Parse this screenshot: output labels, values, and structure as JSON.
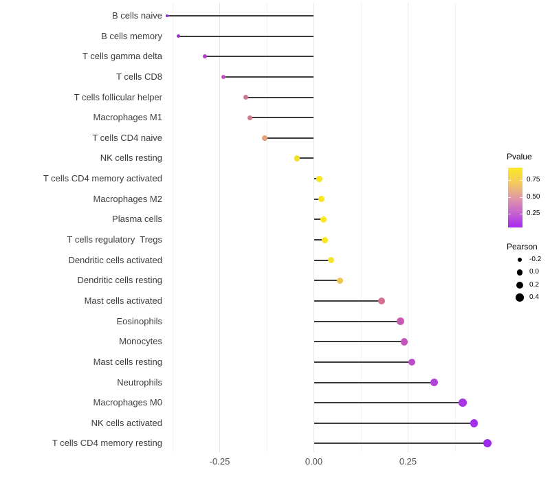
{
  "chart_data": {
    "type": "lollipop",
    "orientation": "horizontal",
    "title": "",
    "xlabel": "",
    "ylabel": "",
    "xlim": [
      -0.43,
      0.5
    ],
    "grid": "vertical major+minor, light gray on white",
    "x_tick_labels": [
      "-0.25",
      "0.00",
      "0.25"
    ],
    "x_ticks": [
      -0.25,
      0.0,
      0.25
    ],
    "x_minor_ticks": [
      -0.375,
      -0.125,
      0.125,
      0.375
    ],
    "size_encoding": "Pearson correlation (larger = higher value)",
    "color_encoding": "Pvalue (purple = low, yellow = high)",
    "rows": [
      {
        "label": "B cells naive",
        "pearson": -0.39,
        "color": "#8F2BD1"
      },
      {
        "label": "B cells memory",
        "pearson": -0.36,
        "color": "#9C35CC"
      },
      {
        "label": "T cells gamma delta",
        "pearson": -0.29,
        "color": "#B13FCC"
      },
      {
        "label": "T cells CD8",
        "pearson": -0.24,
        "color": "#BC54BC"
      },
      {
        "label": "T cells follicular helper",
        "pearson": -0.18,
        "color": "#CE7396"
      },
      {
        "label": "Macrophages M1",
        "pearson": -0.17,
        "color": "#D17A8C"
      },
      {
        "label": "T cells CD4 naive",
        "pearson": -0.13,
        "color": "#E6A178"
      },
      {
        "label": "NK cells resting",
        "pearson": -0.045,
        "color": "#F2DF2E"
      },
      {
        "label": "T cells CD4 memory activated",
        "pearson": 0.015,
        "color": "#F7E620"
      },
      {
        "label": "Macrophages M2",
        "pearson": 0.02,
        "color": "#F7E620"
      },
      {
        "label": "Plasma cells",
        "pearson": 0.025,
        "color": "#F7E620"
      },
      {
        "label": "T cells regulatory  Tregs",
        "pearson": 0.03,
        "color": "#F7E620"
      },
      {
        "label": "Dendritic cells activated",
        "pearson": 0.045,
        "color": "#F5E32B"
      },
      {
        "label": "Dendritic cells resting",
        "pearson": 0.07,
        "color": "#EFC44F"
      },
      {
        "label": "Mast cells activated",
        "pearson": 0.18,
        "color": "#D4718F"
      },
      {
        "label": "Eosinophils",
        "pearson": 0.23,
        "color": "#C75BB1"
      },
      {
        "label": "Monocytes",
        "pearson": 0.24,
        "color": "#C553BE"
      },
      {
        "label": "Mast cells resting",
        "pearson": 0.26,
        "color": "#BD4BCB"
      },
      {
        "label": "Neutrophils",
        "pearson": 0.32,
        "color": "#AF42D8"
      },
      {
        "label": "Macrophages M0",
        "pearson": 0.395,
        "color": "#A835E2"
      },
      {
        "label": "NK cells activated",
        "pearson": 0.425,
        "color": "#A230E8"
      },
      {
        "label": "T cells CD4 memory resting",
        "pearson": 0.46,
        "color": "#9D2BEB"
      }
    ]
  },
  "legend": {
    "pvalue": {
      "title": "Pvalue",
      "tick_labels": [
        "0.75",
        "0.50",
        "0.25"
      ],
      "gradient_bottom_to_top": [
        "#A428F0",
        "#C765CE",
        "#E19AA4",
        "#F3CB5C",
        "#FBE926"
      ]
    },
    "pearson": {
      "title": "Pearson",
      "items": [
        {
          "label": "-0.2",
          "value": -0.2
        },
        {
          "label": "0.0",
          "value": 0.0
        },
        {
          "label": "0.2",
          "value": 0.2
        },
        {
          "label": "0.4",
          "value": 0.4
        }
      ]
    }
  },
  "colors": {
    "background": "#ffffff",
    "stem": "#3a3a3a",
    "grid_major": "#e5e5e5",
    "grid_minor": "#f2f2f2",
    "axis_text": "#4d4d4d"
  }
}
